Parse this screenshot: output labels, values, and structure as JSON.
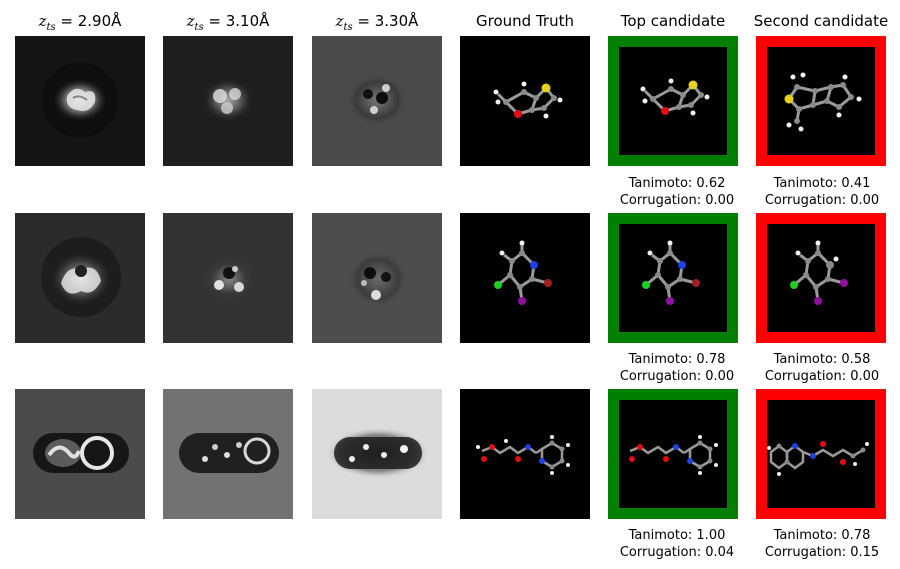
{
  "columns": {
    "afm1": {
      "prefix": "z",
      "sub": "ts",
      "eq": " = 2.90Å"
    },
    "afm2": {
      "prefix": "z",
      "sub": "ts",
      "eq": " = 3.10Å"
    },
    "afm3": {
      "prefix": "z",
      "sub": "ts",
      "eq": " = 3.30Å"
    },
    "ground_truth": "Ground Truth",
    "top": "Top candidate",
    "second": "Second candidate"
  },
  "rows": [
    {
      "afm_backgrounds": [
        "#151515",
        "#1e1e1e",
        "#4a4a4a"
      ],
      "top_frame_color": "#007f00",
      "second_frame_color": "#ff0000",
      "top_caption": {
        "tanimoto": "Tanimoto: 0.62",
        "corrugation": "Corrugation: 0.00"
      },
      "second_caption": {
        "tanimoto": "Tanimoto: 0.41",
        "corrugation": "Corrugation: 0.00"
      }
    },
    {
      "afm_backgrounds": [
        "#2b2b2b",
        "#333333",
        "#4d4d4d"
      ],
      "top_frame_color": "#007f00",
      "second_frame_color": "#ff0000",
      "top_caption": {
        "tanimoto": "Tanimoto: 0.78",
        "corrugation": "Corrugation: 0.00"
      },
      "second_caption": {
        "tanimoto": "Tanimoto: 0.58",
        "corrugation": "Corrugation: 0.00"
      }
    },
    {
      "afm_backgrounds": [
        "#4b4b4b",
        "#727272",
        "#dcdcdc"
      ],
      "top_frame_color": "#007f00",
      "second_frame_color": "#ff0000",
      "top_caption": {
        "tanimoto": "Tanimoto: 1.00",
        "corrugation": "Corrugation: 0.04"
      },
      "second_caption": {
        "tanimoto": "Tanimoto: 0.78",
        "corrugation": "Corrugation: 0.15"
      }
    }
  ],
  "atom_colors": {
    "carbon": "#8a8a8a",
    "hydrogen": "#f0f0f0",
    "sulfur": "#e6d21e",
    "oxygen": "#e01010",
    "nitrogen": "#2040e0",
    "chlorine": "#20d020",
    "bromine": "#a02020",
    "iodine": "#9010a0"
  }
}
